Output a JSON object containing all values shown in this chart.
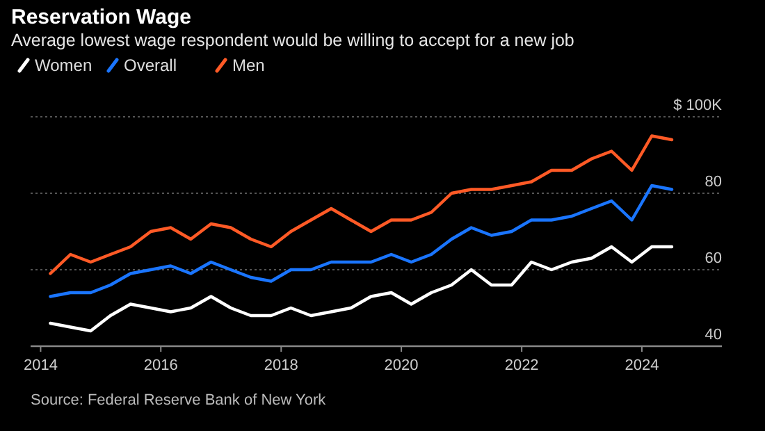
{
  "chart_data": {
    "type": "line",
    "title": "Reservation Wage",
    "subtitle": "Average lowest wage respondent would be willing to accept for a new job",
    "x": [
      "2014-03",
      "2014-07",
      "2014-11",
      "2015-03",
      "2015-07",
      "2015-11",
      "2016-03",
      "2016-07",
      "2016-11",
      "2017-03",
      "2017-07",
      "2017-11",
      "2018-03",
      "2018-07",
      "2018-11",
      "2019-03",
      "2019-07",
      "2019-11",
      "2020-03",
      "2020-07",
      "2020-11",
      "2021-03",
      "2021-07",
      "2021-11",
      "2022-03",
      "2022-07",
      "2022-11",
      "2023-03",
      "2023-07",
      "2023-11",
      "2024-03",
      "2024-07"
    ],
    "series": [
      {
        "name": "Women",
        "color": "#ffffff",
        "values": [
          46,
          45,
          44,
          48,
          51,
          50,
          49,
          50,
          53,
          50,
          48,
          48,
          50,
          48,
          49,
          50,
          53,
          54,
          51,
          54,
          56,
          60,
          56,
          56,
          62,
          60,
          62,
          63,
          66,
          62,
          66,
          66
        ]
      },
      {
        "name": "Overall",
        "color": "#1a75ff",
        "values": [
          53,
          54,
          54,
          56,
          59,
          60,
          61,
          59,
          62,
          60,
          58,
          57,
          60,
          60,
          62,
          62,
          62,
          64,
          62,
          64,
          68,
          71,
          69,
          70,
          73,
          73,
          74,
          76,
          78,
          73,
          82,
          81
        ]
      },
      {
        "name": "Men",
        "color": "#ff5a26",
        "values": [
          59,
          64,
          62,
          64,
          66,
          70,
          71,
          68,
          72,
          71,
          68,
          66,
          70,
          73,
          76,
          73,
          70,
          73,
          73,
          75,
          80,
          81,
          81,
          82,
          83,
          86,
          86,
          89,
          91,
          86,
          95,
          94
        ]
      }
    ],
    "xlim": [
      "2013-11",
      "2025-05"
    ],
    "xticks": [
      {
        "value": "2014",
        "label": "2014"
      },
      {
        "value": "2016",
        "label": "2016"
      },
      {
        "value": "2018",
        "label": "2018"
      },
      {
        "value": "2020",
        "label": "2020"
      },
      {
        "value": "2022",
        "label": "2022"
      },
      {
        "value": "2024",
        "label": "2024"
      }
    ],
    "ylim": [
      40,
      100
    ],
    "yticks": [
      40,
      60,
      80,
      {
        "value": 100,
        "label": "$ 100K"
      }
    ],
    "grid": "y",
    "legend": "top",
    "marker": "none",
    "line_style": "solid",
    "annotations": [
      "Source: Federal Reserve Bank of New York"
    ]
  }
}
